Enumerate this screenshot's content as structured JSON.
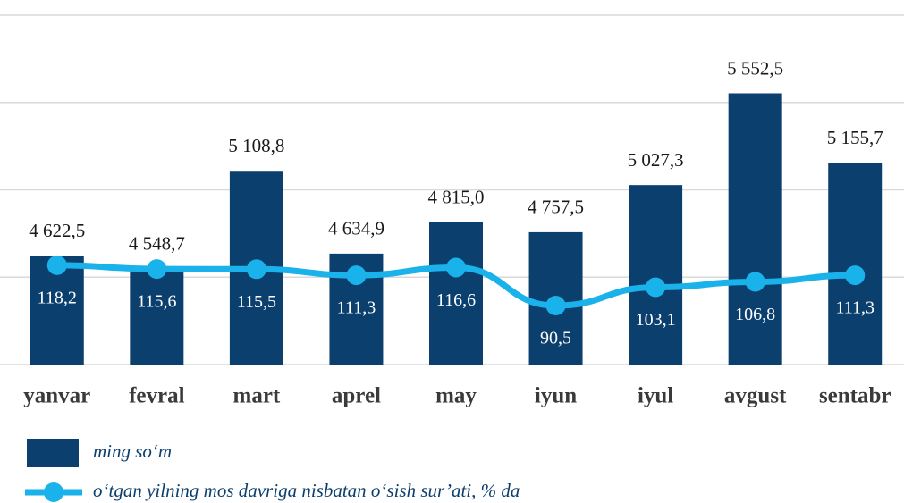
{
  "chart_data": {
    "type": "bar_line",
    "categories": [
      "yanvar",
      "fevral",
      "mart",
      "aprel",
      "may",
      "iyun",
      "iyul",
      "avgust",
      "sentabr"
    ],
    "series": [
      {
        "name": "ming so‘m",
        "type": "bar",
        "color": "#0b3f6d",
        "values": [
          4622.5,
          4548.7,
          5108.8,
          4634.9,
          4815.0,
          4757.5,
          5027.3,
          5552.5,
          5155.7
        ],
        "value_labels": [
          "4 622,5",
          "4 548,7",
          "5 108,8",
          "4 634,9",
          "4 815,0",
          "4 757,5",
          "5 027,3",
          "5 552,5",
          "5 155,7"
        ]
      },
      {
        "name": "o‘tgan yilning mos davriga nisbatan o‘sish sur’ati, % da",
        "type": "line",
        "axis": "y2",
        "color": "#1ab2ea",
        "values": [
          118.2,
          115.6,
          115.5,
          111.3,
          116.6,
          90.5,
          103.1,
          106.8,
          111.3
        ],
        "value_labels": [
          "118,2",
          "115,6",
          "115,5",
          "111,3",
          "116,6",
          "90,5",
          "103,1",
          "106,8",
          "111,3"
        ]
      }
    ],
    "ylim": [
      4000,
      6000
    ],
    "yticks": [
      4000,
      4500,
      5000,
      5500,
      6000
    ],
    "y2lim": [
      50,
      290
    ],
    "grid": true
  }
}
